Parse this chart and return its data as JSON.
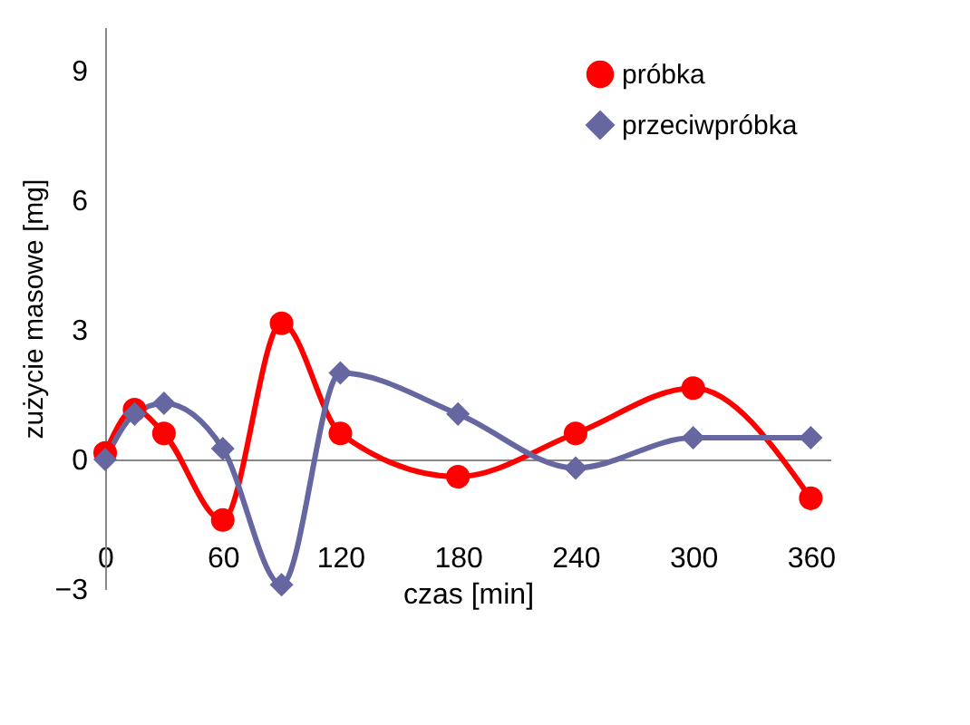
{
  "chart_data": {
    "type": "line",
    "xlabel": "czas [min]",
    "ylabel": "zużycie masowe [mg]",
    "xlim": [
      0,
      370
    ],
    "xticks": [
      0,
      60,
      120,
      180,
      240,
      300,
      360
    ],
    "ylim": [
      -3,
      10
    ],
    "yticks": [
      -3,
      0,
      3,
      6,
      9
    ],
    "legend": "top right",
    "line_style": "solid",
    "series": [
      {
        "name": "próbka",
        "color": "#ff0000",
        "marker": "circle",
        "x": [
          0,
          15,
          30,
          60,
          90,
          120,
          180,
          240,
          300,
          360
        ],
        "values": [
          0.15,
          1.15,
          0.6,
          -1.4,
          3.15,
          0.6,
          -0.4,
          0.6,
          1.65,
          -0.9
        ]
      },
      {
        "name": "przeciwpróbka",
        "color": "#6667a0",
        "marker": "diamond",
        "x": [
          0,
          15,
          30,
          60,
          90,
          120,
          180,
          240,
          300,
          360
        ],
        "values": [
          0.0,
          1.05,
          1.3,
          0.25,
          -2.9,
          2.0,
          1.05,
          -0.2,
          0.5,
          0.5
        ]
      }
    ]
  }
}
